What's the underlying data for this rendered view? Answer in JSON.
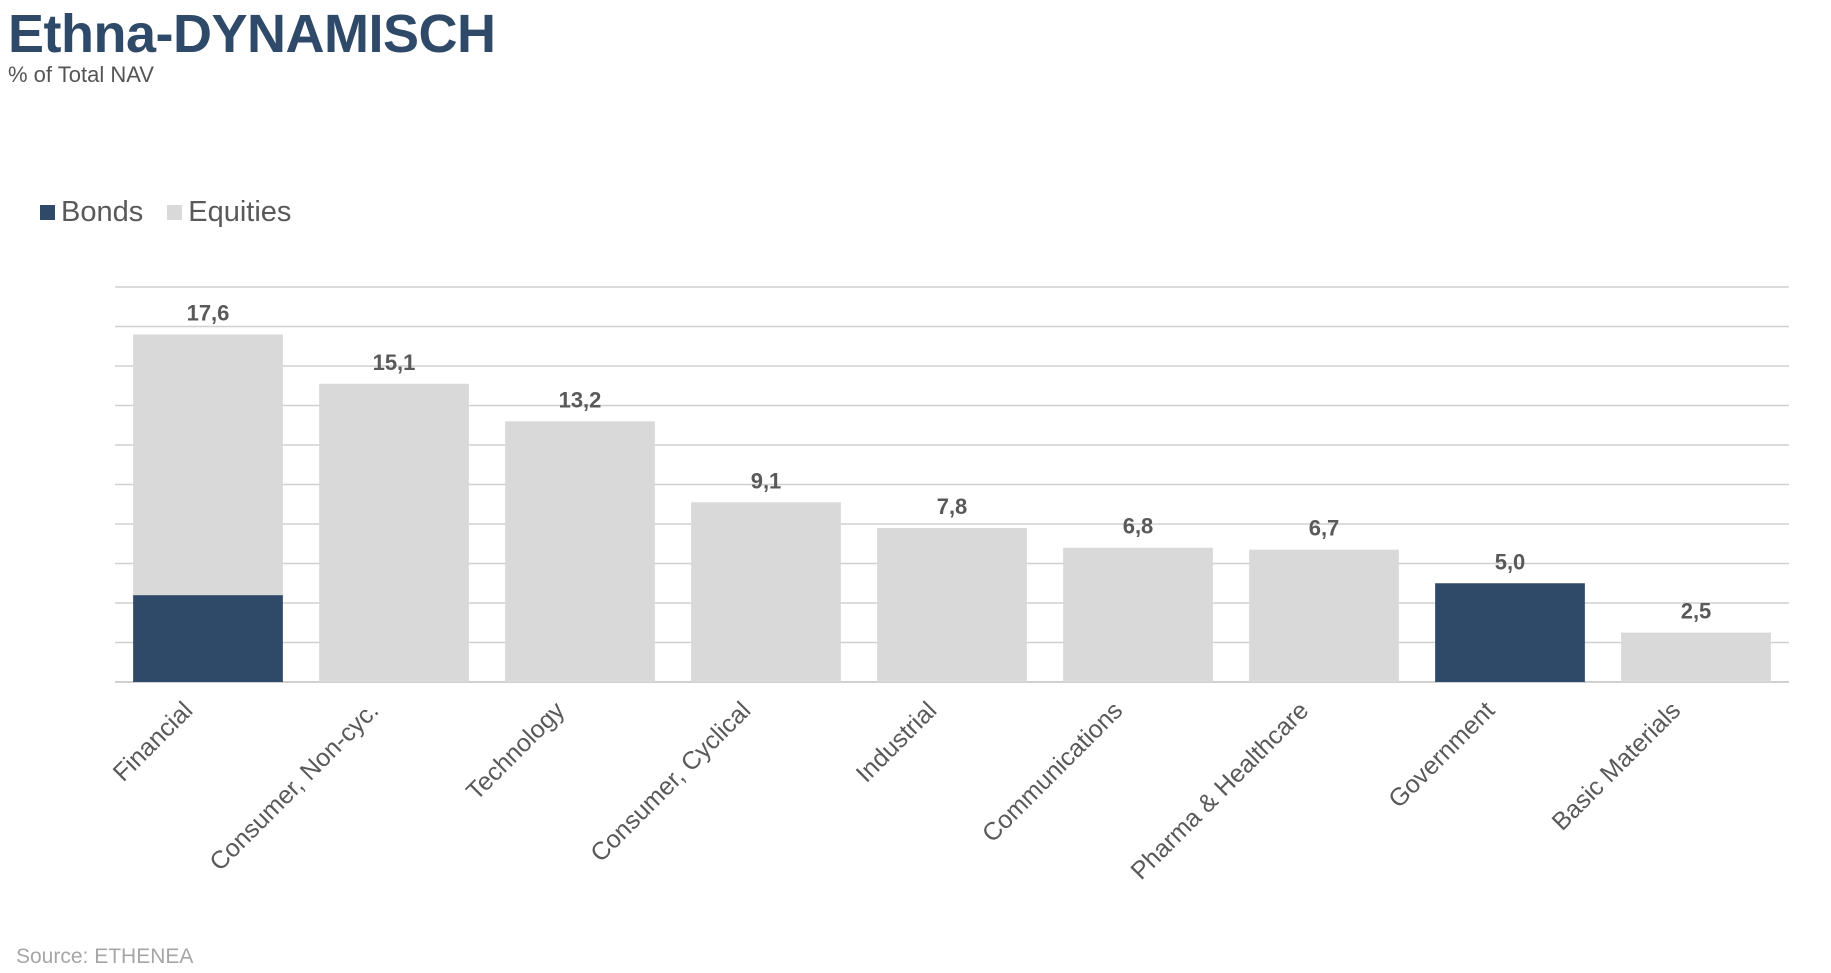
{
  "title": "Ethna-DYNAMISCH",
  "subtitle": "% of Total NAV",
  "source": "Source: ETHENEA",
  "colors": {
    "bonds": "#2e4a68",
    "equities": "#d9d9d9",
    "grid": "#d0d0d0",
    "title": "#2e4a68"
  },
  "chart_data": {
    "type": "bar",
    "stacked": true,
    "categories": [
      "Financial",
      "Consumer, Non-cyc.",
      "Technology",
      "Consumer, Cyclical",
      "Industrial",
      "Communications",
      "Pharma & Healthcare",
      "Government",
      "Basic Materials"
    ],
    "series": [
      {
        "name": "Bonds",
        "values": [
          4.4,
          0,
          0,
          0,
          0,
          0,
          0,
          5.0,
          0
        ]
      },
      {
        "name": "Equities",
        "values": [
          13.2,
          15.1,
          13.2,
          9.1,
          7.8,
          6.8,
          6.7,
          0,
          2.5
        ]
      }
    ],
    "totals": [
      17.6,
      15.1,
      13.2,
      9.1,
      7.8,
      6.8,
      6.7,
      5.0,
      2.5
    ],
    "total_labels": [
      "17,6",
      "15,1",
      "13,2",
      "9,1",
      "7,8",
      "6,8",
      "6,7",
      "5,0",
      "2,5"
    ],
    "ylim": [
      0,
      20
    ],
    "grid": true,
    "legend": "top-left"
  }
}
